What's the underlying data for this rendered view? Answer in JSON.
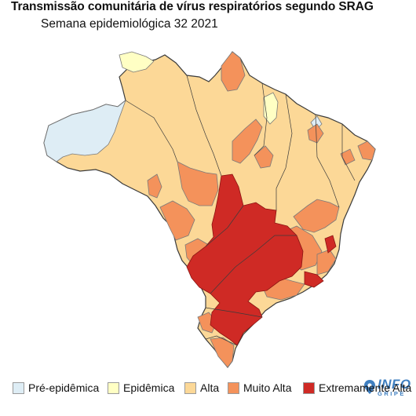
{
  "title": "Transmissão comunitária de vírus respiratórios segundo SRAG",
  "subtitle": "Semana epidemiológica 32 2021",
  "logo": {
    "top": "INFO",
    "bottom": "GRIPE",
    "color": "#3f7fc0"
  },
  "colors": {
    "pre_epidemica": "#deedf5",
    "epidemica": "#ffffc4",
    "alta": "#fcd897",
    "muito_alta": "#f4925b",
    "extremamente_alta": "#cf2a25",
    "border": "#3b3b3b",
    "region_line": "#7a7a7a"
  },
  "legend": [
    {
      "label": "Pré-epidêmica",
      "color_key": "pre_epidemica"
    },
    {
      "label": "Epidêmica",
      "color_key": "epidemica"
    },
    {
      "label": "Alta",
      "color_key": "alta"
    },
    {
      "label": "Muito Alta",
      "color_key": "muito_alta"
    },
    {
      "label": "Extremamente Alta",
      "color_key": "extremamente_alta"
    }
  ]
}
